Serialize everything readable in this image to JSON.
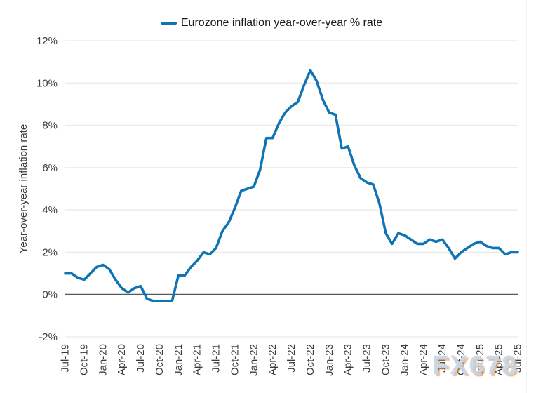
{
  "legend": {
    "label": "Eurozone inflation year-over-year % rate"
  },
  "y_axis": {
    "title": "Year-over-year inflation rate"
  },
  "watermark": "FX678",
  "chart_data": {
    "type": "line",
    "title": "",
    "legend_position": "top-center",
    "grid": "horizontal",
    "ylim": [
      -2,
      12
    ],
    "y_ticks": [
      12,
      10,
      8,
      6,
      4,
      2,
      0,
      -2
    ],
    "y_tick_labels": [
      "12%",
      "10%",
      "8%",
      "6%",
      "4%",
      "2%",
      "0%",
      "-2%"
    ],
    "x_tick_labels": [
      "Jul-19",
      "Oct-19",
      "Jan-20",
      "Apr-20",
      "Jul-20",
      "Oct-20",
      "Jan-21",
      "Apr-21",
      "Jul-21",
      "Oct-21",
      "Jan-22",
      "Apr-22",
      "Jul-22",
      "Oct-22",
      "Jan-23",
      "Apr-23",
      "Jul-23",
      "Oct-23",
      "Jan-24",
      "Apr-24",
      "Jul-24",
      "Oct-24",
      "Jan-25",
      "Apr-25",
      "Jul-25"
    ],
    "xlabel": "",
    "ylabel": "Year-over-year inflation rate",
    "series": [
      {
        "name": "Eurozone inflation year-over-year % rate",
        "x": [
          "Jul-19",
          "Aug-19",
          "Sep-19",
          "Oct-19",
          "Nov-19",
          "Dec-19",
          "Jan-20",
          "Feb-20",
          "Mar-20",
          "Apr-20",
          "May-20",
          "Jun-20",
          "Jul-20",
          "Aug-20",
          "Sep-20",
          "Oct-20",
          "Nov-20",
          "Dec-20",
          "Jan-21",
          "Feb-21",
          "Mar-21",
          "Apr-21",
          "May-21",
          "Jun-21",
          "Jul-21",
          "Aug-21",
          "Sep-21",
          "Oct-21",
          "Nov-21",
          "Dec-21",
          "Jan-22",
          "Feb-22",
          "Mar-22",
          "Apr-22",
          "May-22",
          "Jun-22",
          "Jul-22",
          "Aug-22",
          "Sep-22",
          "Oct-22",
          "Nov-22",
          "Dec-22",
          "Jan-23",
          "Feb-23",
          "Mar-23",
          "Apr-23",
          "May-23",
          "Jun-23",
          "Jul-23",
          "Aug-23",
          "Sep-23",
          "Oct-23",
          "Nov-23",
          "Dec-23",
          "Jan-24",
          "Feb-24",
          "Mar-24",
          "Apr-24",
          "May-24",
          "Jun-24",
          "Jul-24",
          "Aug-24",
          "Sep-24",
          "Oct-24",
          "Nov-24",
          "Dec-24",
          "Jan-25",
          "Feb-25",
          "Mar-25",
          "Apr-25",
          "May-25",
          "Jun-25",
          "Jul-25"
        ],
        "values": [
          1.0,
          1.0,
          0.8,
          0.7,
          1.0,
          1.3,
          1.4,
          1.2,
          0.7,
          0.3,
          0.1,
          0.3,
          0.4,
          -0.2,
          -0.3,
          -0.3,
          -0.3,
          -0.3,
          0.9,
          0.9,
          1.3,
          1.6,
          2.0,
          1.9,
          2.2,
          3.0,
          3.4,
          4.1,
          4.9,
          5.0,
          5.1,
          5.9,
          7.4,
          7.4,
          8.1,
          8.6,
          8.9,
          9.1,
          9.9,
          10.6,
          10.1,
          9.2,
          8.6,
          8.5,
          6.9,
          7.0,
          6.1,
          5.5,
          5.3,
          5.2,
          4.3,
          2.9,
          2.4,
          2.9,
          2.8,
          2.6,
          2.4,
          2.4,
          2.6,
          2.5,
          2.6,
          2.2,
          1.7,
          2.0,
          2.2,
          2.4,
          2.5,
          2.3,
          2.2,
          2.2,
          1.9,
          2.0,
          2.0
        ]
      }
    ],
    "colors": {
      "line": "#1074b4",
      "grid": "#e9e9e9",
      "zero_line": "#595959",
      "tick_text": "#3b3b3b"
    }
  }
}
